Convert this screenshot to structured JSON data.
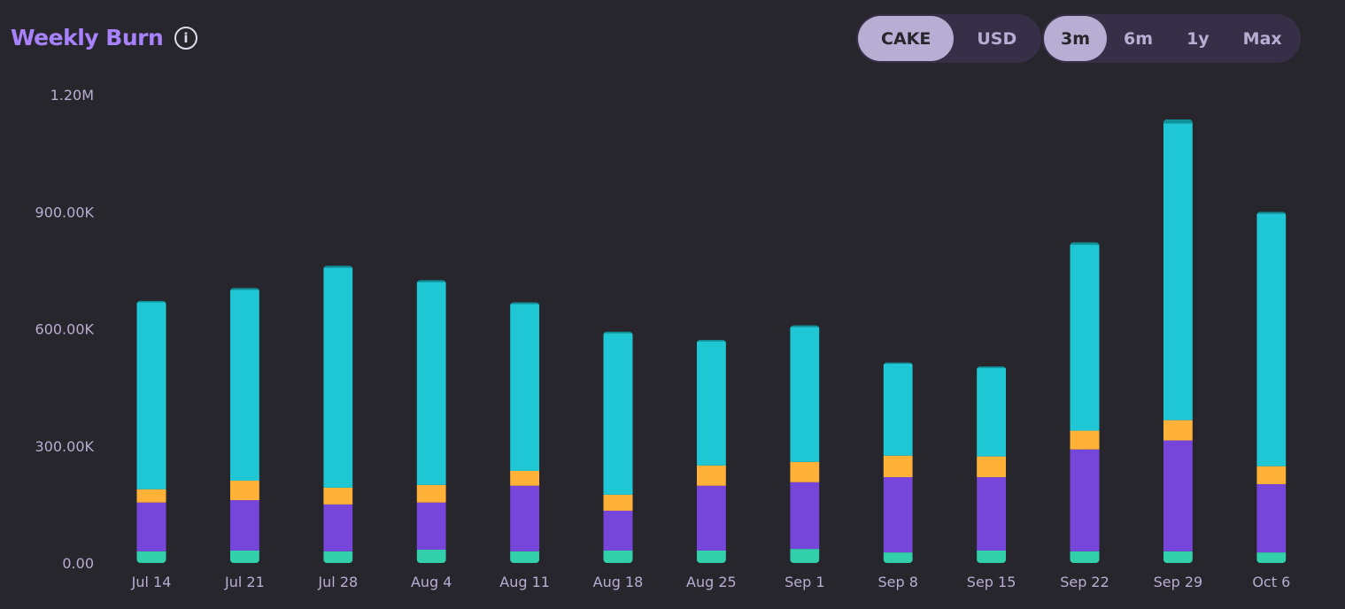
{
  "header": {
    "title": "Weekly Burn",
    "info_icon": "info-icon"
  },
  "currency_toggle": {
    "options": [
      "CAKE",
      "USD"
    ],
    "selected": "CAKE"
  },
  "range_toggle": {
    "options": [
      "3m",
      "6m",
      "1y",
      "Max"
    ],
    "selected": "3m"
  },
  "colors": {
    "background": "#27262c",
    "title": "#a881fc",
    "series": [
      "#31d0aa",
      "#7645d9",
      "#ffb237",
      "#1fc7d4",
      "#0f8f97"
    ]
  },
  "chart_data": {
    "type": "bar",
    "stacked": true,
    "categories": [
      "Jul 14",
      "Jul 21",
      "Jul 28",
      "Aug 4",
      "Aug 11",
      "Aug 18",
      "Aug 25",
      "Sep 1",
      "Sep 8",
      "Sep 15",
      "Sep 22",
      "Sep 29",
      "Oct 6"
    ],
    "y_ticks": [
      "0.00",
      "300.00K",
      "600.00K",
      "900.00K",
      "1.20M"
    ],
    "ylim": [
      0,
      1200000
    ],
    "grid": false,
    "series": [
      {
        "color": "#31d0aa",
        "values": [
          30000,
          32000,
          30000,
          34000,
          30000,
          32000,
          32000,
          36000,
          27000,
          32000,
          30000,
          30000,
          27000
        ]
      },
      {
        "color": "#7645d9",
        "values": [
          125000,
          129000,
          120000,
          121000,
          168000,
          102000,
          166000,
          171000,
          193000,
          188000,
          261000,
          284000,
          175000
        ]
      },
      {
        "color": "#ffb237",
        "values": [
          34000,
          50000,
          43000,
          45000,
          38000,
          41000,
          52000,
          52000,
          55000,
          53000,
          48000,
          52000,
          46000
        ]
      },
      {
        "color": "#1fc7d4",
        "values": [
          479000,
          489000,
          564000,
          520000,
          428000,
          414000,
          318000,
          346000,
          236000,
          227000,
          477000,
          761000,
          647000
        ]
      },
      {
        "color": "#0f8f97",
        "values": [
          4000,
          5000,
          5000,
          5000,
          4000,
          4000,
          4000,
          4000,
          3000,
          4000,
          6000,
          10000,
          5000
        ]
      }
    ]
  }
}
